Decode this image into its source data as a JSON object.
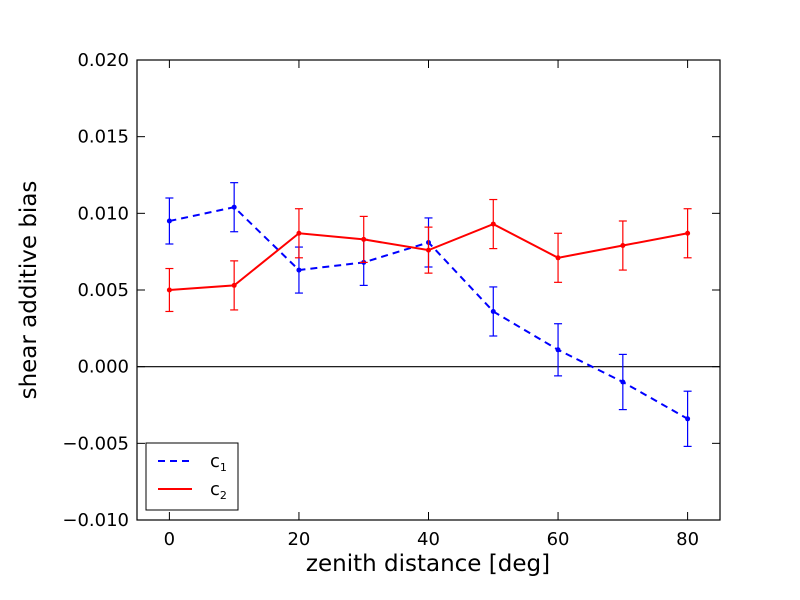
{
  "chart_data": {
    "type": "line",
    "title": "",
    "xlabel": "zenith distance [deg]",
    "ylabel": "shear additive bias",
    "xlim": [
      -5,
      85
    ],
    "ylim": [
      -0.01,
      0.02
    ],
    "xticks": [
      0,
      20,
      40,
      60,
      80
    ],
    "xtick_labels": [
      "0",
      "20",
      "40",
      "60",
      "80"
    ],
    "yticks": [
      -0.01,
      -0.005,
      0.0,
      0.005,
      0.01,
      0.015,
      0.02
    ],
    "ytick_labels": [
      "−0.010",
      "−0.005",
      "0.000",
      "0.005",
      "0.010",
      "0.015",
      "0.020"
    ],
    "hline": 0.0,
    "legend_position": "lower-left",
    "x": [
      0,
      10,
      20,
      30,
      40,
      50,
      60,
      70,
      80
    ],
    "series": [
      {
        "name": "c1",
        "legend_label": "c",
        "legend_subscript": "1",
        "color": "#0000ff",
        "linestyle": "dashed",
        "values": [
          0.0095,
          0.0104,
          0.0063,
          0.0068,
          0.0081,
          0.0036,
          0.0011,
          -0.001,
          -0.0034
        ],
        "errors": [
          0.0015,
          0.0016,
          0.0015,
          0.0015,
          0.0016,
          0.0016,
          0.0017,
          0.0018,
          0.0018
        ]
      },
      {
        "name": "c2",
        "legend_label": "c",
        "legend_subscript": "2",
        "color": "#ff0000",
        "linestyle": "solid",
        "values": [
          0.005,
          0.0053,
          0.0087,
          0.0083,
          0.0076,
          0.0093,
          0.0071,
          0.0079,
          0.0087
        ],
        "errors": [
          0.0014,
          0.0016,
          0.0016,
          0.0015,
          0.0015,
          0.0016,
          0.0016,
          0.0016,
          0.0016
        ]
      }
    ]
  }
}
